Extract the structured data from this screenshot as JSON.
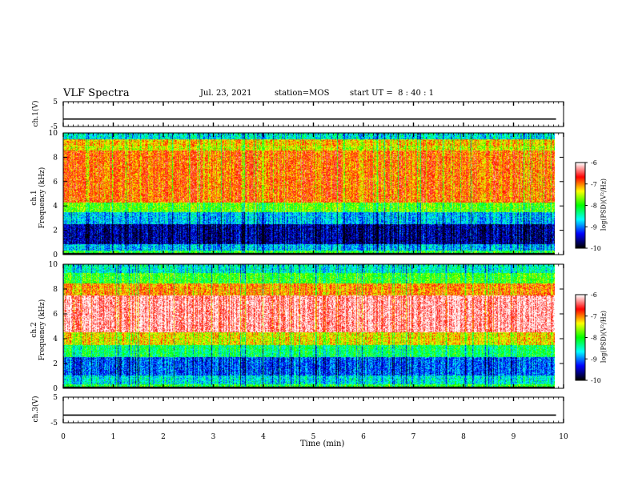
{
  "header": {
    "title": "VLF Spectra",
    "date": "Jul. 23, 2021",
    "station_label": "station=",
    "station": "MOS",
    "start_label": "start UT =",
    "start_time": "8 : 40 : 1"
  },
  "chart_data": [
    {
      "type": "line",
      "panel": "ch1-waveform",
      "ylabel": "ch.1(V)",
      "ylim": [
        -5,
        5
      ],
      "yticks": [
        "5",
        "-5"
      ],
      "series": [
        {
          "name": "ch.1",
          "level": -2.0
        }
      ]
    },
    {
      "type": "heatmap",
      "panel": "ch1-spectrogram",
      "ylabel": "ch.1 Frequency (kHz)",
      "ylim": [
        0,
        10
      ],
      "yticks": [
        "0",
        "2",
        "4",
        "6",
        "8",
        "10"
      ],
      "colorbar": {
        "label": "log(PSD)(V²/Hz)",
        "range": [
          -10,
          -6
        ],
        "ticks": [
          "-6",
          "-7",
          "-8",
          "-9",
          "-10"
        ]
      },
      "bands": [
        {
          "from_khz": 0.0,
          "to_khz": 0.3,
          "level": -8.0
        },
        {
          "from_khz": 0.3,
          "to_khz": 0.8,
          "level": -8.8
        },
        {
          "from_khz": 0.8,
          "to_khz": 2.5,
          "level": -9.6
        },
        {
          "from_khz": 2.5,
          "to_khz": 3.5,
          "level": -8.8
        },
        {
          "from_khz": 3.5,
          "to_khz": 4.3,
          "level": -7.8
        },
        {
          "from_khz": 4.3,
          "to_khz": 8.6,
          "level": -6.9
        },
        {
          "from_khz": 8.6,
          "to_khz": 9.0,
          "level": -7.4
        },
        {
          "from_khz": 9.0,
          "to_khz": 9.5,
          "level": -7.2
        },
        {
          "from_khz": 9.5,
          "to_khz": 10.0,
          "level": -8.6
        }
      ]
    },
    {
      "type": "heatmap",
      "panel": "ch2-spectrogram",
      "ylabel": "ch.2 Frequency (kHz)",
      "ylim": [
        0,
        10
      ],
      "yticks": [
        "0",
        "2",
        "4",
        "6",
        "8",
        "10"
      ],
      "colorbar": {
        "label": "log(PSD)(V²/Hz)",
        "range": [
          -10,
          -6
        ],
        "ticks": [
          "-6",
          "-7",
          "-8",
          "-9",
          "-10"
        ]
      },
      "bands": [
        {
          "from_khz": 0.0,
          "to_khz": 0.3,
          "level": -8.0
        },
        {
          "from_khz": 0.3,
          "to_khz": 1.0,
          "level": -8.6
        },
        {
          "from_khz": 1.0,
          "to_khz": 2.5,
          "level": -9.1
        },
        {
          "from_khz": 2.5,
          "to_khz": 3.5,
          "level": -8.2
        },
        {
          "from_khz": 3.5,
          "to_khz": 4.5,
          "level": -7.3
        },
        {
          "from_khz": 4.5,
          "to_khz": 7.5,
          "level": -6.2
        },
        {
          "from_khz": 7.5,
          "to_khz": 8.5,
          "level": -7.0
        },
        {
          "from_khz": 8.5,
          "to_khz": 9.3,
          "level": -7.9
        },
        {
          "from_khz": 9.3,
          "to_khz": 10.0,
          "level": -8.5
        }
      ]
    },
    {
      "type": "line",
      "panel": "ch3-waveform",
      "ylabel": "ch.3(V)",
      "ylim": [
        -5,
        5
      ],
      "yticks": [
        "5",
        "-5"
      ],
      "series": [
        {
          "name": "ch.3",
          "level": -2.0
        }
      ]
    }
  ],
  "xaxis": {
    "label": "Time (min)",
    "range": [
      0,
      10
    ],
    "ticks": [
      "0",
      "1",
      "2",
      "3",
      "4",
      "5",
      "6",
      "7",
      "8",
      "9",
      "10"
    ],
    "data_end": 9.85
  },
  "colors": {
    "scale": [
      "#ffffff",
      "#ff0000",
      "#ffff00",
      "#00ff00",
      "#00ffff",
      "#0000ff",
      "#000000"
    ]
  }
}
